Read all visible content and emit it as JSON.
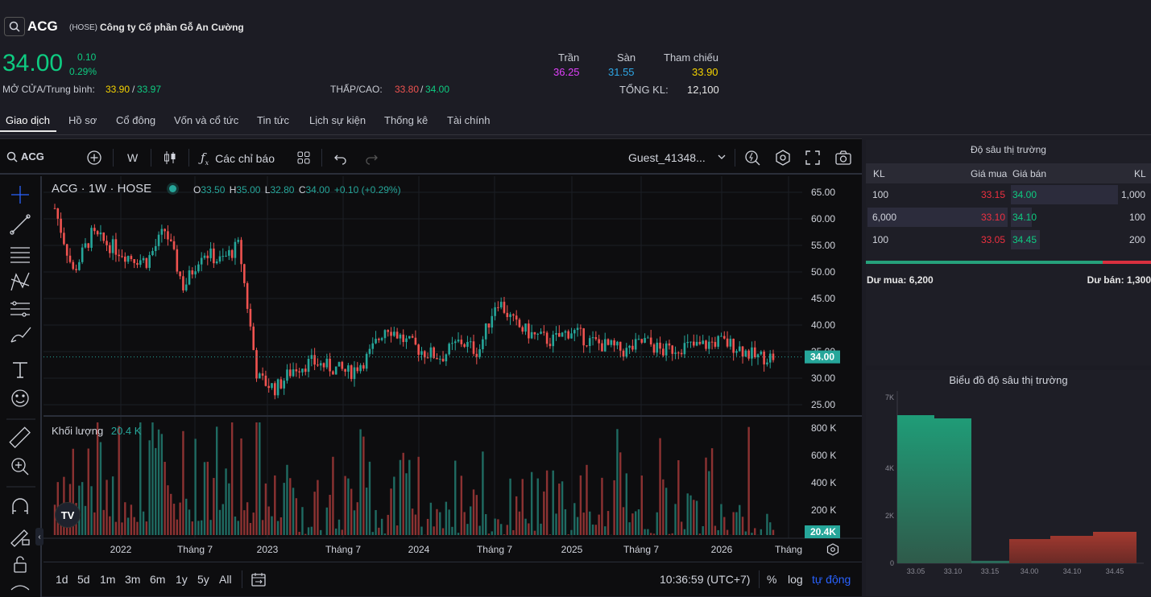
{
  "header": {
    "symbol": "ACG",
    "exchange": "(HOSE)",
    "company": "Công ty Cổ phần Gỗ An Cường",
    "price": "34.00",
    "change": "0.10",
    "change_pct": "0.29%",
    "open_avg_label": "MỞ CỬA/Trung bình:",
    "open": "33.90",
    "avg": "33.97",
    "lowhigh_label": "THẤP/CAO:",
    "low": "33.80",
    "high": "34.00",
    "ceiling_label": "Trần",
    "ceiling": "36.25",
    "floor_label": "Sàn",
    "floor": "31.55",
    "ref_label": "Tham chiếu",
    "ref": "33.90",
    "volume_label": "TỔNG KL:",
    "volume": "12,100"
  },
  "tabs": [
    "Giao dịch",
    "Hồ sơ",
    "Cổ đông",
    "Vốn và cổ tức",
    "Tin tức",
    "Lịch sự kiện",
    "Thống kê",
    "Tài chính"
  ],
  "toolbar": {
    "symbol": "ACG",
    "interval": "W",
    "indicators": "Các chỉ báo",
    "user": "Guest_41348..."
  },
  "legend": {
    "title": "ACG · 1W · HOSE",
    "o_label": "O",
    "o": "33.50",
    "h_label": "H",
    "h": "35.00",
    "l_label": "L",
    "l": "32.80",
    "c_label": "C",
    "c": "34.00",
    "chg": "+0.10 (+0.29%)",
    "vol_label": "Khối lượng",
    "vol": "20.4 K"
  },
  "price_axis": [
    "65.00",
    "60.00",
    "55.00",
    "50.00",
    "45.00",
    "40.00",
    "35.00",
    "30.00",
    "25.00"
  ],
  "last_price": "34.00",
  "vol_axis": [
    "800 K",
    "600 K",
    "400 K",
    "200 K"
  ],
  "last_vol": "20.4K",
  "time_axis": [
    "2022",
    "Tháng 7",
    "2023",
    "Tháng 7",
    "2024",
    "Tháng 7",
    "2025",
    "Tháng 7",
    "2026",
    "Tháng"
  ],
  "ranges": [
    "1d",
    "5d",
    "1m",
    "3m",
    "6m",
    "1y",
    "5y",
    "All"
  ],
  "bottom": {
    "clock": "10:36:59 (UTC+7)",
    "pct": "%",
    "log": "log",
    "auto": "tự động"
  },
  "depth": {
    "title": "Độ sâu thị trường",
    "cols": [
      "KL",
      "Giá mua",
      "Giá bán",
      "KL"
    ],
    "rows": [
      {
        "bid_vol": "100",
        "bid": "33.15",
        "ask": "34.00",
        "ask_vol": "1,000"
      },
      {
        "bid_vol": "6,000",
        "bid": "33.10",
        "ask": "34.10",
        "ask_vol": "100"
      },
      {
        "bid_vol": "100",
        "bid": "33.05",
        "ask": "34.45",
        "ask_vol": "200"
      }
    ],
    "sum_bid_label": "Dư mua: 6,200",
    "sum_ask_label": "Dư bán: 1,300"
  },
  "depth_chart": {
    "title": "Biểu đồ độ sâu thị trường",
    "y_ticks": [
      "7K",
      "4K",
      "2K",
      "0"
    ],
    "x_ticks": [
      "33.05",
      "33.10",
      "33.15",
      "34.00",
      "34.10",
      "34.45"
    ]
  },
  "chart_data": {
    "type": "candlestick",
    "title": "ACG · 1W · HOSE",
    "ylim": [
      25,
      65
    ],
    "series": [
      {
        "name": "close",
        "approx_path": [
          62,
          50,
          57,
          55,
          53,
          52,
          58,
          47,
          54,
          52,
          55,
          30,
          28,
          32,
          33,
          32,
          31,
          34,
          40,
          37,
          35,
          34,
          37,
          35,
          45,
          40,
          38,
          37,
          39,
          37,
          36,
          35,
          37,
          35,
          36,
          36,
          37,
          36,
          34,
          34
        ]
      }
    ],
    "volume_ylim": [
      0,
      800000
    ]
  },
  "colors": {
    "up": "#26a69a",
    "down": "#ef5350",
    "price_green": "#0ecb81",
    "purple": "#e040fb",
    "cyan": "#2ea7e6",
    "yellow": "#f5d300"
  }
}
